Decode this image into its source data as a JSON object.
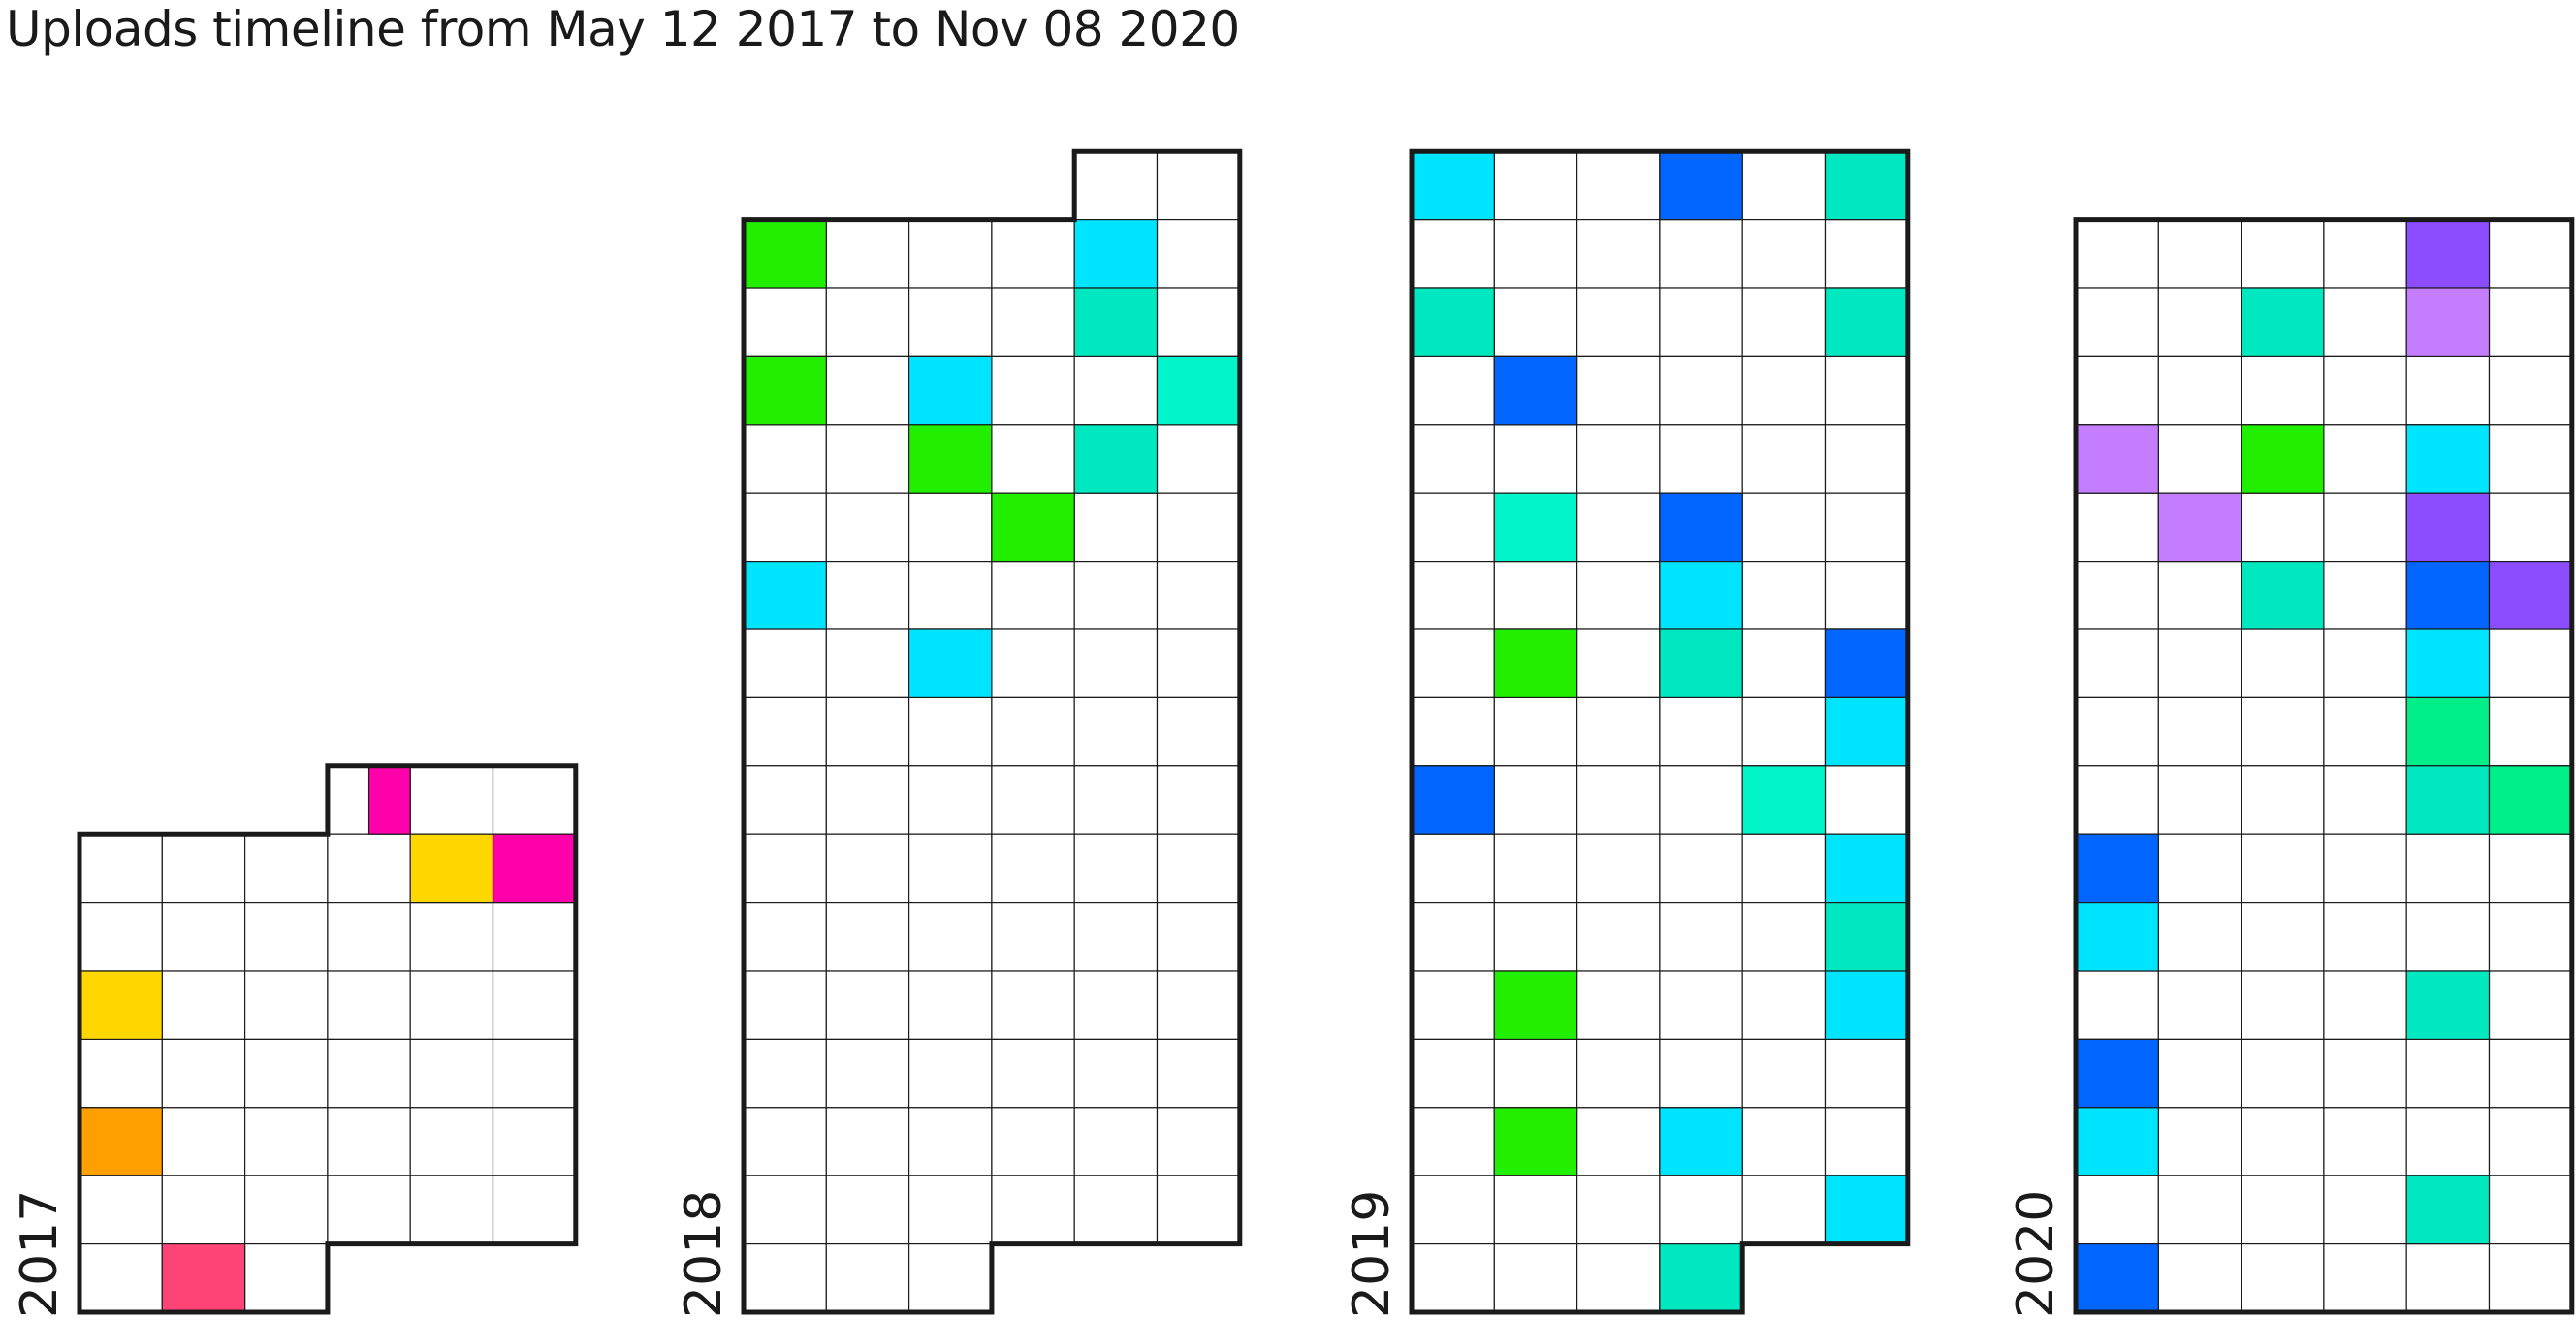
{
  "chart_data": {
    "type": "heatmap",
    "title": "Uploads timeline from May 12 2017 to Nov 08 2020",
    "layout": "one calendar panel per year, 6 columns x 4-hour slots, rows = weeks",
    "grid": true,
    "panels": [
      {
        "year": "2017",
        "first_row_from_col": 3,
        "last_row_until_col": 2,
        "rows": 8
      },
      {
        "year": "2018",
        "first_row_from_col": 4,
        "last_row_until_col": 2,
        "rows": 17
      },
      {
        "year": "2019",
        "first_row_from_col": 0,
        "last_row_until_col": 3,
        "rows": 17
      },
      {
        "year": "2020",
        "first_row_from_col": 0,
        "last_row_until_col": 5,
        "rows": 16
      }
    ],
    "cells": [
      {
        "year": "2017",
        "row": 0,
        "col": 3,
        "color": "#ff00aa",
        "sub": "narrow"
      },
      {
        "year": "2017",
        "row": 1,
        "col": 4,
        "color": "#ffd700"
      },
      {
        "year": "2017",
        "row": 1,
        "col": 5,
        "color": "#ff00aa"
      },
      {
        "year": "2017",
        "row": 3,
        "col": 0,
        "color": "#ffd700"
      },
      {
        "year": "2017",
        "row": 5,
        "col": 0,
        "color": "#ff9f00"
      },
      {
        "year": "2017",
        "row": 7,
        "col": 1,
        "color": "#ff4477"
      },
      {
        "year": "2018",
        "row": 1,
        "col": 0,
        "color": "#22ee00"
      },
      {
        "year": "2018",
        "row": 1,
        "col": 4,
        "color": "#00e5ff"
      },
      {
        "year": "2018",
        "row": 2,
        "col": 4,
        "color": "#00e8c0"
      },
      {
        "year": "2018",
        "row": 3,
        "col": 0,
        "color": "#22ee00"
      },
      {
        "year": "2018",
        "row": 3,
        "col": 2,
        "color": "#00e5ff"
      },
      {
        "year": "2018",
        "row": 3,
        "col": 5,
        "color": "#00f5c8"
      },
      {
        "year": "2018",
        "row": 4,
        "col": 2,
        "color": "#22ee00"
      },
      {
        "year": "2018",
        "row": 4,
        "col": 4,
        "color": "#00e8c0"
      },
      {
        "year": "2018",
        "row": 5,
        "col": 3,
        "color": "#22ee00"
      },
      {
        "year": "2018",
        "row": 6,
        "col": 0,
        "color": "#00e5ff"
      },
      {
        "year": "2018",
        "row": 7,
        "col": 2,
        "color": "#00e5ff"
      },
      {
        "year": "2019",
        "row": 0,
        "col": 0,
        "color": "#00e5ff"
      },
      {
        "year": "2019",
        "row": 0,
        "col": 3,
        "color": "#0066ff"
      },
      {
        "year": "2019",
        "row": 0,
        "col": 5,
        "color": "#00e8c0"
      },
      {
        "year": "2019",
        "row": 2,
        "col": 0,
        "color": "#00e8c0"
      },
      {
        "year": "2019",
        "row": 2,
        "col": 5,
        "color": "#00e8c0"
      },
      {
        "year": "2019",
        "row": 3,
        "col": 1,
        "color": "#0066ff"
      },
      {
        "year": "2019",
        "row": 5,
        "col": 1,
        "color": "#00f5c8"
      },
      {
        "year": "2019",
        "row": 5,
        "col": 3,
        "color": "#0066ff"
      },
      {
        "year": "2019",
        "row": 6,
        "col": 3,
        "color": "#00e5ff"
      },
      {
        "year": "2019",
        "row": 7,
        "col": 1,
        "color": "#22ee00"
      },
      {
        "year": "2019",
        "row": 7,
        "col": 3,
        "color": "#00e8c0"
      },
      {
        "year": "2019",
        "row": 7,
        "col": 5,
        "color": "#0066ff"
      },
      {
        "year": "2019",
        "row": 8,
        "col": 5,
        "color": "#00e5ff"
      },
      {
        "year": "2019",
        "row": 9,
        "col": 0,
        "color": "#0066ff"
      },
      {
        "year": "2019",
        "row": 9,
        "col": 4,
        "color": "#00f5c8"
      },
      {
        "year": "2019",
        "row": 10,
        "col": 5,
        "color": "#00e5ff"
      },
      {
        "year": "2019",
        "row": 11,
        "col": 5,
        "color": "#00e8c0"
      },
      {
        "year": "2019",
        "row": 12,
        "col": 1,
        "color": "#22ee00"
      },
      {
        "year": "2019",
        "row": 12,
        "col": 5,
        "color": "#00e5ff"
      },
      {
        "year": "2019",
        "row": 14,
        "col": 1,
        "color": "#22ee00"
      },
      {
        "year": "2019",
        "row": 14,
        "col": 3,
        "color": "#00e5ff"
      },
      {
        "year": "2019",
        "row": 15,
        "col": 5,
        "color": "#00e5ff"
      },
      {
        "year": "2019",
        "row": 16,
        "col": 3,
        "color": "#00e8c0"
      },
      {
        "year": "2020",
        "row": 0,
        "col": 4,
        "color": "#8b4dff"
      },
      {
        "year": "2020",
        "row": 1,
        "col": 2,
        "color": "#00e8c0"
      },
      {
        "year": "2020",
        "row": 1,
        "col": 4,
        "color": "#c47dff"
      },
      {
        "year": "2020",
        "row": 3,
        "col": 0,
        "color": "#c47dff"
      },
      {
        "year": "2020",
        "row": 3,
        "col": 2,
        "color": "#22ee00"
      },
      {
        "year": "2020",
        "row": 3,
        "col": 4,
        "color": "#00e5ff"
      },
      {
        "year": "2020",
        "row": 4,
        "col": 1,
        "color": "#c47dff"
      },
      {
        "year": "2020",
        "row": 4,
        "col": 4,
        "color": "#8b4dff"
      },
      {
        "year": "2020",
        "row": 5,
        "col": 2,
        "color": "#00e8c0"
      },
      {
        "year": "2020",
        "row": 5,
        "col": 4,
        "color": "#0066ff"
      },
      {
        "year": "2020",
        "row": 5,
        "col": 5,
        "color": "#8b4dff"
      },
      {
        "year": "2020",
        "row": 6,
        "col": 4,
        "color": "#00e5ff"
      },
      {
        "year": "2020",
        "row": 7,
        "col": 4,
        "color": "#00ee88"
      },
      {
        "year": "2020",
        "row": 8,
        "col": 4,
        "color": "#00e8c0"
      },
      {
        "year": "2020",
        "row": 8,
        "col": 5,
        "color": "#00ee88"
      },
      {
        "year": "2020",
        "row": 9,
        "col": 0,
        "color": "#0066ff"
      },
      {
        "year": "2020",
        "row": 10,
        "col": 0,
        "color": "#00e5ff"
      },
      {
        "year": "2020",
        "row": 11,
        "col": 4,
        "color": "#00e8c0"
      },
      {
        "year": "2020",
        "row": 12,
        "col": 0,
        "color": "#0066ff"
      },
      {
        "year": "2020",
        "row": 13,
        "col": 0,
        "color": "#00e5ff"
      },
      {
        "year": "2020",
        "row": 14,
        "col": 4,
        "color": "#00e8c0"
      },
      {
        "year": "2020",
        "row": 15,
        "col": 0,
        "color": "#0066ff"
      }
    ],
    "colors": {
      "grid_line": "#1a1a1a",
      "empty_cell": "#ffffff"
    }
  }
}
